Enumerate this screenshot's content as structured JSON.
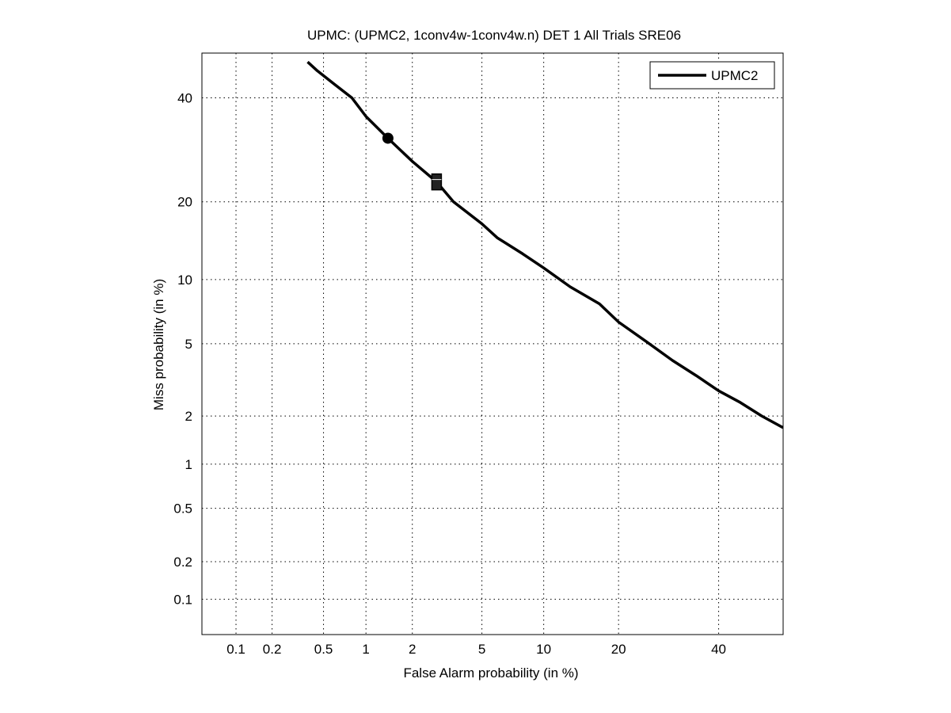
{
  "chart_data": {
    "type": "line",
    "title": "UPMC: (UPMC2, 1conv4w-1conv4w.n) DET 1 All Trials SRE06",
    "xlabel": "False Alarm probability (in %)",
    "ylabel": "Miss probability (in %)",
    "x_scale": "probit",
    "y_scale": "probit",
    "xlim": [
      0.05,
      55
    ],
    "ylim": [
      0.05,
      50
    ],
    "x_ticks": [
      {
        "value": 0.1,
        "label": "0.1"
      },
      {
        "value": 0.2,
        "label": "0.2"
      },
      {
        "value": 0.5,
        "label": "0.5"
      },
      {
        "value": 1,
        "label": "1"
      },
      {
        "value": 2,
        "label": "2"
      },
      {
        "value": 5,
        "label": "5"
      },
      {
        "value": 10,
        "label": "10"
      },
      {
        "value": 20,
        "label": "20"
      },
      {
        "value": 40,
        "label": "40"
      }
    ],
    "y_ticks": [
      {
        "value": 0.1,
        "label": "0.1"
      },
      {
        "value": 0.2,
        "label": "0.2"
      },
      {
        "value": 0.5,
        "label": "0.5"
      },
      {
        "value": 1,
        "label": "1"
      },
      {
        "value": 2,
        "label": "2"
      },
      {
        "value": 5,
        "label": "5"
      },
      {
        "value": 10,
        "label": "10"
      },
      {
        "value": 20,
        "label": "20"
      },
      {
        "value": 40,
        "label": "40"
      }
    ],
    "grid": true,
    "legend_position": "top-right",
    "series": [
      {
        "name": "UPMC2",
        "color": "#000000",
        "x": [
          0.38,
          0.45,
          0.6,
          0.8,
          1.0,
          1.4,
          2.0,
          2.8,
          3.5,
          5.0,
          6.0,
          8.0,
          10.0,
          13.0,
          17.0,
          20.0,
          25.0,
          30.0,
          35.0,
          40.0,
          45.0,
          50.0,
          55.0
        ],
        "y": [
          48,
          46,
          43,
          40,
          36,
          31.5,
          27,
          23.3,
          20,
          16.7,
          14.8,
          12.8,
          11.2,
          9.3,
          7.8,
          6.4,
          5.1,
          4.1,
          3.4,
          2.8,
          2.4,
          2.0,
          1.7
        ]
      }
    ],
    "markers": [
      {
        "shape": "circle",
        "x": 1.4,
        "y": 31.5
      },
      {
        "shape": "square",
        "x": 2.8,
        "y": 23.3
      }
    ]
  }
}
